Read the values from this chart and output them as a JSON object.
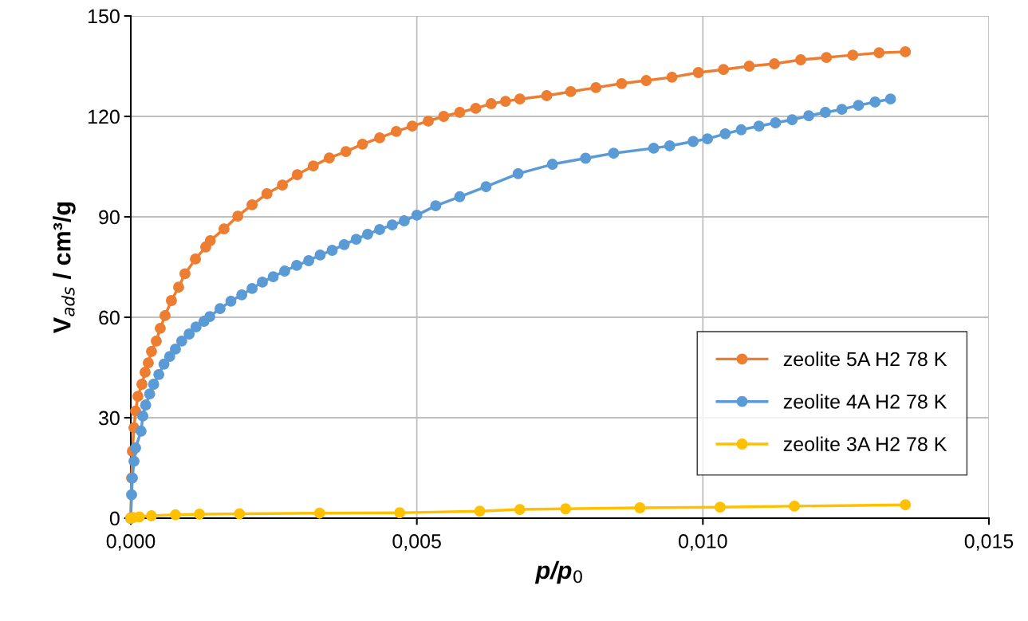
{
  "chart_data": {
    "type": "line",
    "xlabel": "p/p$_{0}$",
    "ylabel": "V$_{ads}$ / cm³/g",
    "marker": "circle",
    "line_style": "solid",
    "grid": true,
    "legend": "bottom right",
    "xlim": [
      0,
      0.015
    ],
    "xticks": [
      {
        "value": 0,
        "label": "0,000"
      },
      {
        "value": 0.005,
        "label": "0,005"
      },
      {
        "value": 0.01,
        "label": "0,010"
      },
      {
        "value": 0.015,
        "label": "0,015"
      }
    ],
    "ylim": [
      0,
      150
    ],
    "yticks": [
      0,
      30,
      60,
      90,
      120,
      150
    ],
    "series": [
      {
        "name": "zeolite 5A H2 78 K",
        "color": "#ed7d31",
        "x": [
          0,
          1.4e-05,
          2.8e-05,
          5.6e-05,
          8.4e-05,
          0.000125,
          0.000195,
          0.00025,
          0.000306,
          0.000362,
          0.000446,
          0.000515,
          0.000599,
          0.00071,
          0.000836,
          0.000947,
          0.00113,
          0.00131,
          0.00139,
          0.00163,
          0.00187,
          0.00212,
          0.00238,
          0.00265,
          0.00291,
          0.00319,
          0.00347,
          0.00376,
          0.00405,
          0.00435,
          0.00464,
          0.00492,
          0.0052,
          0.00547,
          0.00575,
          0.00603,
          0.0063,
          0.00655,
          0.0068,
          0.00727,
          0.00769,
          0.00813,
          0.00858,
          0.00901,
          0.00946,
          0.00992,
          0.01036,
          0.01081,
          0.01125,
          0.01171,
          0.01216,
          0.01262,
          0.01308,
          0.01354
        ],
        "values": [
          0,
          12,
          20,
          27,
          32,
          36.4,
          40,
          43.6,
          46.4,
          49.8,
          52.9,
          56.7,
          60.5,
          65,
          69,
          73,
          77.4,
          81,
          82.9,
          86.4,
          90.2,
          93.6,
          96.9,
          99.5,
          102.6,
          105.2,
          107.6,
          109.5,
          111.7,
          113.6,
          115.5,
          117.1,
          118.6,
          120,
          121.2,
          122.4,
          123.8,
          124.5,
          125.2,
          126.2,
          127.4,
          128.6,
          129.8,
          130.7,
          131.7,
          133.1,
          134,
          135,
          135.7,
          136.9,
          137.6,
          138.3,
          139,
          139.3
        ]
      },
      {
        "name": "zeolite 4A H2 78 K",
        "color": "#5b9bd5",
        "x": [
          0,
          1.4e-05,
          2.8e-05,
          5.6e-05,
          8.4e-05,
          0.00018,
          0.00021,
          0.00026,
          0.00033,
          0.0004,
          0.00049,
          0.00058,
          0.00068,
          0.00078,
          0.00089,
          0.00102,
          0.00114,
          0.00128,
          0.00138,
          0.00156,
          0.00175,
          0.00194,
          0.00212,
          0.0023,
          0.00249,
          0.00269,
          0.0029,
          0.00311,
          0.00331,
          0.00352,
          0.00373,
          0.00394,
          0.00414,
          0.00435,
          0.00457,
          0.00478,
          0.005,
          0.00533,
          0.00575,
          0.00621,
          0.00677,
          0.00737,
          0.00795,
          0.00844,
          0.00914,
          0.00942,
          0.00983,
          0.01008,
          0.01039,
          0.01067,
          0.01098,
          0.01127,
          0.01156,
          0.01185,
          0.01214,
          0.01243,
          0.01272,
          0.01301,
          0.01328
        ],
        "values": [
          0,
          7,
          12,
          17,
          21,
          26,
          30.5,
          33.8,
          37.1,
          40,
          42.9,
          46,
          48.3,
          50.5,
          52.9,
          55,
          57.1,
          58.8,
          60.2,
          62.6,
          64.8,
          66.7,
          68.6,
          70.5,
          72.1,
          73.8,
          75.5,
          76.9,
          78.6,
          80,
          81.7,
          83.3,
          84.8,
          86.2,
          87.6,
          88.8,
          90.5,
          93.3,
          96,
          99,
          102.9,
          105.7,
          107.5,
          109,
          110.5,
          111.2,
          112.5,
          113.3,
          114.8,
          116,
          117.1,
          118.1,
          119,
          120.2,
          121.2,
          122.1,
          123.3,
          124.3,
          125.2
        ]
      },
      {
        "name": "zeolite 3A H2 78 K",
        "color": "#ffc000",
        "x": [
          0,
          4e-05,
          0.00015,
          0.00036,
          0.00078,
          0.0012,
          0.0019,
          0.0033,
          0.0047,
          0.0061,
          0.0068,
          0.0076,
          0.0089,
          0.0103,
          0.0116,
          0.01354
        ],
        "values": [
          0,
          0.2,
          0.4,
          0.7,
          1.0,
          1.2,
          1.3,
          1.5,
          1.6,
          2.1,
          2.6,
          2.8,
          3.1,
          3.3,
          3.6,
          4.0
        ]
      }
    ]
  }
}
